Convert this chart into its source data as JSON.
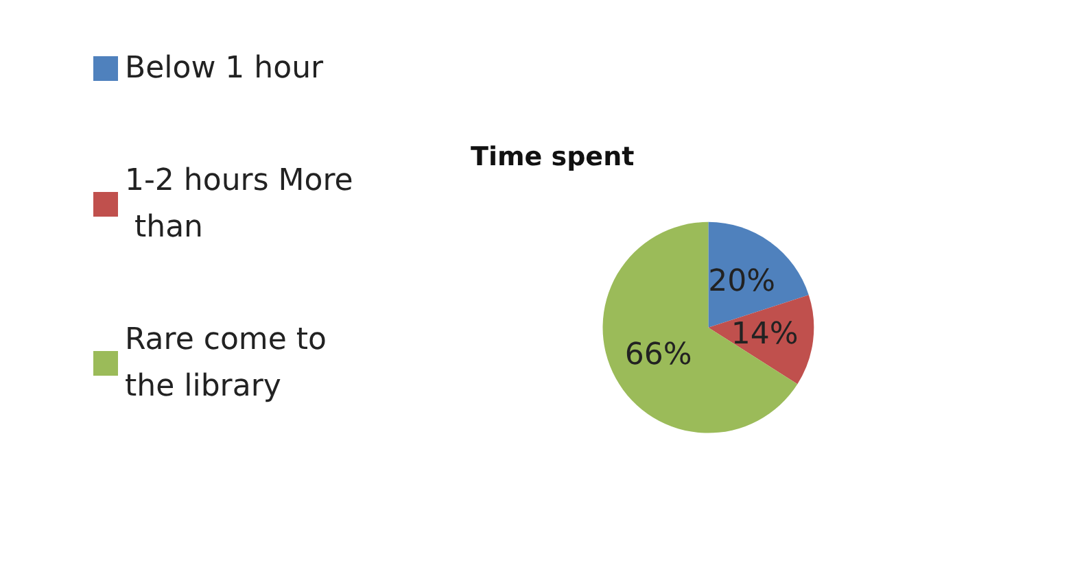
{
  "chart_data": {
    "type": "pie",
    "title": "Time spent",
    "categories": [
      "Below 1 hour",
      "1-2 hours More than",
      "Rare come to the library"
    ],
    "values": [
      20,
      14,
      66
    ],
    "colors": [
      "#4f81bd",
      "#c0504d",
      "#9bbb59"
    ],
    "value_labels": [
      "20%",
      "14%",
      "66%"
    ],
    "legend": "left"
  }
}
